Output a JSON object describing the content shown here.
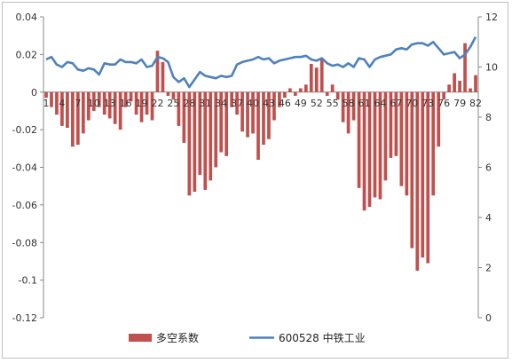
{
  "chart_data": {
    "type": "bar+line",
    "categories": [
      "1",
      "2",
      "3",
      "4",
      "5",
      "6",
      "7",
      "8",
      "9",
      "10",
      "11",
      "12",
      "13",
      "14",
      "15",
      "16",
      "17",
      "18",
      "19",
      "20",
      "21",
      "22",
      "23",
      "24",
      "25",
      "26",
      "27",
      "28",
      "29",
      "30",
      "31",
      "32",
      "33",
      "34",
      "35",
      "36",
      "37",
      "38",
      "39",
      "40",
      "41",
      "42",
      "43",
      "44",
      "45",
      "46",
      "47",
      "48",
      "49",
      "50",
      "51",
      "52",
      "53",
      "54",
      "55",
      "56",
      "57",
      "58",
      "59",
      "60",
      "61",
      "62",
      "63",
      "64",
      "65",
      "66",
      "67",
      "68",
      "69",
      "70",
      "71",
      "72",
      "73",
      "74",
      "75",
      "76",
      "77",
      "78",
      "79",
      "80",
      "81",
      "82"
    ],
    "tick_labels": [
      "1",
      "4",
      "7",
      "10",
      "13",
      "16",
      "19",
      "22",
      "25",
      "28",
      "31",
      "34",
      "37",
      "40",
      "43",
      "46",
      "49",
      "52",
      "55",
      "58",
      "61",
      "64",
      "67",
      "70",
      "73",
      "76",
      "79",
      "82"
    ],
    "series": [
      {
        "name": "多空系数",
        "kind": "bar",
        "axis": "left",
        "color": "#c0504d",
        "values": [
          -0.003,
          -0.008,
          -0.012,
          -0.018,
          -0.019,
          -0.029,
          -0.028,
          -0.022,
          -0.015,
          -0.01,
          -0.008,
          -0.012,
          -0.014,
          -0.017,
          -0.02,
          -0.008,
          -0.005,
          -0.012,
          -0.016,
          -0.012,
          -0.015,
          0.022,
          0.016,
          -0.002,
          -0.004,
          -0.018,
          -0.027,
          -0.055,
          -0.053,
          -0.044,
          -0.052,
          -0.047,
          -0.04,
          -0.032,
          -0.034,
          -0.008,
          -0.012,
          -0.021,
          -0.024,
          -0.022,
          -0.036,
          -0.028,
          -0.025,
          -0.015,
          -0.008,
          -0.003,
          0.002,
          -0.002,
          0.002,
          0.004,
          0.015,
          0.013,
          0.018,
          -0.002,
          0.004,
          -0.004,
          -0.016,
          -0.022,
          -0.015,
          -0.051,
          -0.063,
          -0.061,
          -0.056,
          -0.057,
          -0.047,
          -0.035,
          -0.034,
          -0.05,
          -0.055,
          -0.083,
          -0.095,
          -0.088,
          -0.091,
          -0.055,
          -0.029,
          -0.004,
          0.004,
          0.01,
          0.006,
          0.026,
          0.002,
          0.009
        ]
      },
      {
        "name": "600528 中铁工业",
        "kind": "line",
        "axis": "right",
        "color": "#4f81bd",
        "values": [
          10.3,
          10.4,
          10.1,
          10.0,
          10.2,
          10.15,
          9.9,
          9.85,
          9.95,
          9.9,
          9.7,
          10.15,
          10.1,
          10.1,
          10.3,
          10.2,
          10.2,
          10.15,
          10.3,
          10.0,
          10.05,
          10.4,
          10.35,
          10.2,
          9.6,
          9.4,
          9.55,
          9.2,
          9.5,
          9.8,
          9.65,
          9.6,
          9.55,
          9.65,
          9.6,
          9.65,
          10.1,
          10.2,
          10.25,
          10.3,
          10.4,
          10.3,
          10.35,
          10.15,
          10.25,
          10.3,
          10.35,
          10.4,
          10.4,
          10.45,
          10.3,
          10.25,
          10.35,
          10.15,
          10.05,
          10.1,
          10.0,
          10.15,
          10.0,
          10.35,
          10.3,
          10.0,
          10.3,
          10.4,
          10.45,
          10.5,
          10.7,
          10.75,
          10.7,
          10.9,
          10.95,
          10.95,
          10.85,
          11.0,
          10.75,
          10.5,
          10.55,
          10.6,
          10.35,
          10.5,
          10.8,
          11.2
        ]
      }
    ],
    "y_left": {
      "min": -0.12,
      "max": 0.04,
      "ticks": [
        "0.04",
        "0.02",
        "0",
        "-0.02",
        "-0.04",
        "-0.06",
        "-0.08",
        "-0.1",
        "-0.12"
      ],
      "tick_values": [
        0.04,
        0.02,
        0,
        -0.02,
        -0.04,
        -0.06,
        -0.08,
        -0.1,
        -0.12
      ]
    },
    "y_right": {
      "min": 0,
      "max": 12,
      "ticks": [
        "12",
        "10",
        "8",
        "6",
        "4",
        "2",
        "0"
      ],
      "tick_values": [
        12,
        10,
        8,
        6,
        4,
        2,
        0
      ]
    },
    "grid": false,
    "legend_position": "bottom",
    "legend": [
      {
        "label": "多空系数",
        "kind": "bar",
        "color": "#c0504d"
      },
      {
        "label": "600528 中铁工业",
        "kind": "line",
        "color": "#4f81bd"
      }
    ]
  }
}
